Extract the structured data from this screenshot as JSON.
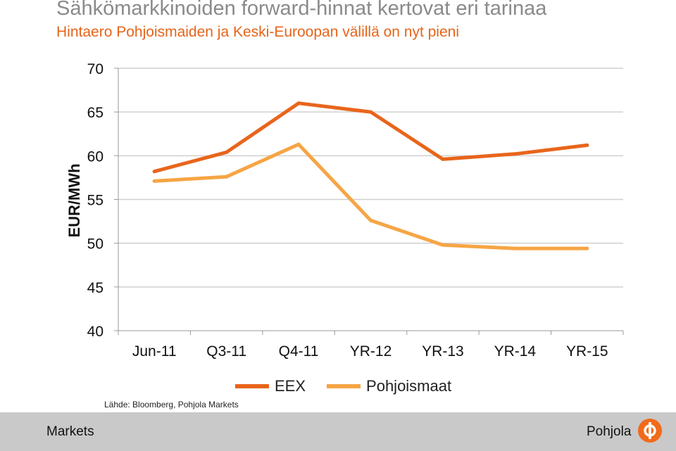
{
  "title": "Sähkömarkkinoiden forward-hinnat kertovat eri tarinaa",
  "subtitle": "Hintaero Pohjoismaiden ja Keski-Euroopan välillä on nyt pieni",
  "source": "Lähde: Bloomberg, Pohjola Markets",
  "footer": {
    "left_label": "Markets",
    "right_label": "Pohjola"
  },
  "colors": {
    "eex": "#e8651c",
    "pohjoismaat": "#f6a545",
    "title": "#8a8a8a",
    "subtitle": "#e5651a",
    "footer_bg": "#c9c9c9"
  },
  "chart_data": {
    "type": "line",
    "ylabel": "EUR/MWh",
    "xlabel": "",
    "ylim": [
      40,
      70
    ],
    "yticks": [
      "40",
      "45",
      "50",
      "55",
      "60",
      "65",
      "70"
    ],
    "grid": true,
    "legend_position": "bottom",
    "categories": [
      "Jun-11",
      "Q3-11",
      "Q4-11",
      "YR-12",
      "YR-13",
      "YR-14",
      "YR-15"
    ],
    "series": [
      {
        "name": "EEX",
        "values": [
          58.2,
          60.4,
          66.0,
          65.0,
          59.6,
          60.2,
          61.2
        ]
      },
      {
        "name": "Pohjoismaat",
        "values": [
          57.1,
          57.6,
          61.3,
          52.6,
          49.8,
          49.4,
          49.4
        ]
      }
    ]
  }
}
